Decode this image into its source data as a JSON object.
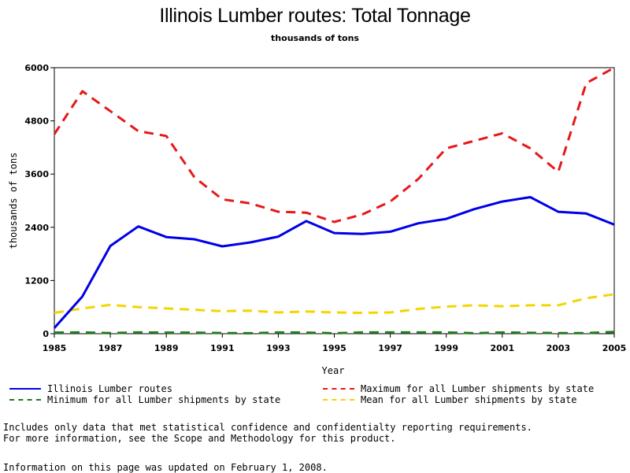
{
  "chart_data": {
    "type": "line",
    "title": "Illinois Lumber routes: Total Tonnage",
    "subtitle": "thousands of tons",
    "xlabel": "Year",
    "ylabel": "thousands of tons",
    "xlim": [
      1985,
      2005
    ],
    "ylim": [
      0,
      6000
    ],
    "x_ticks": [
      "1985",
      "1987",
      "1989",
      "1991",
      "1993",
      "1995",
      "1997",
      "1999",
      "2001",
      "2003",
      "2005"
    ],
    "y_ticks": [
      "0",
      "1200",
      "2400",
      "3600",
      "4800",
      "6000"
    ],
    "x": [
      1985,
      1986,
      1987,
      1988,
      1989,
      1990,
      1991,
      1992,
      1993,
      1994,
      1995,
      1996,
      1997,
      1998,
      1999,
      2000,
      2001,
      2002,
      2003,
      2004,
      2005
    ],
    "grid": false,
    "legend_position": "bottom",
    "series": [
      {
        "name": "Illinois Lumber routes",
        "color": "#0000e6",
        "style": "solid",
        "values": [
          130,
          840,
          1980,
          2420,
          2180,
          2130,
          1970,
          2060,
          2190,
          2540,
          2270,
          2250,
          2300,
          2490,
          2590,
          2810,
          2980,
          3080,
          2750,
          2710,
          2460
        ]
      },
      {
        "name": "Maximum for all Lumber shipments by state",
        "color": "#e61919",
        "style": "dashed",
        "values": [
          4500,
          5470,
          5020,
          4570,
          4460,
          3530,
          3030,
          2940,
          2750,
          2730,
          2520,
          2690,
          2980,
          3490,
          4180,
          4350,
          4520,
          4180,
          3650,
          5650,
          6000
        ]
      },
      {
        "name": "Minimum for all Lumber shipments by state",
        "color": "#1e7a1e",
        "style": "dashed",
        "values": [
          25,
          28,
          15,
          28,
          25,
          25,
          15,
          10,
          28,
          25,
          10,
          28,
          28,
          28,
          28,
          10,
          28,
          20,
          15,
          15,
          40
        ]
      },
      {
        "name": "Mean for all Lumber shipments by state",
        "color": "#f5d400",
        "style": "dashed",
        "values": [
          470,
          570,
          650,
          600,
          570,
          540,
          510,
          520,
          480,
          500,
          480,
          470,
          480,
          560,
          610,
          640,
          620,
          640,
          640,
          800,
          890
        ]
      }
    ]
  },
  "notes": {
    "line1": "Includes only data that met statistical confidence and confidentialty reporting requirements.",
    "line2": "For more information, see the Scope and Methodology for this product."
  },
  "updated": "Information on this page was updated on February 1, 2008."
}
